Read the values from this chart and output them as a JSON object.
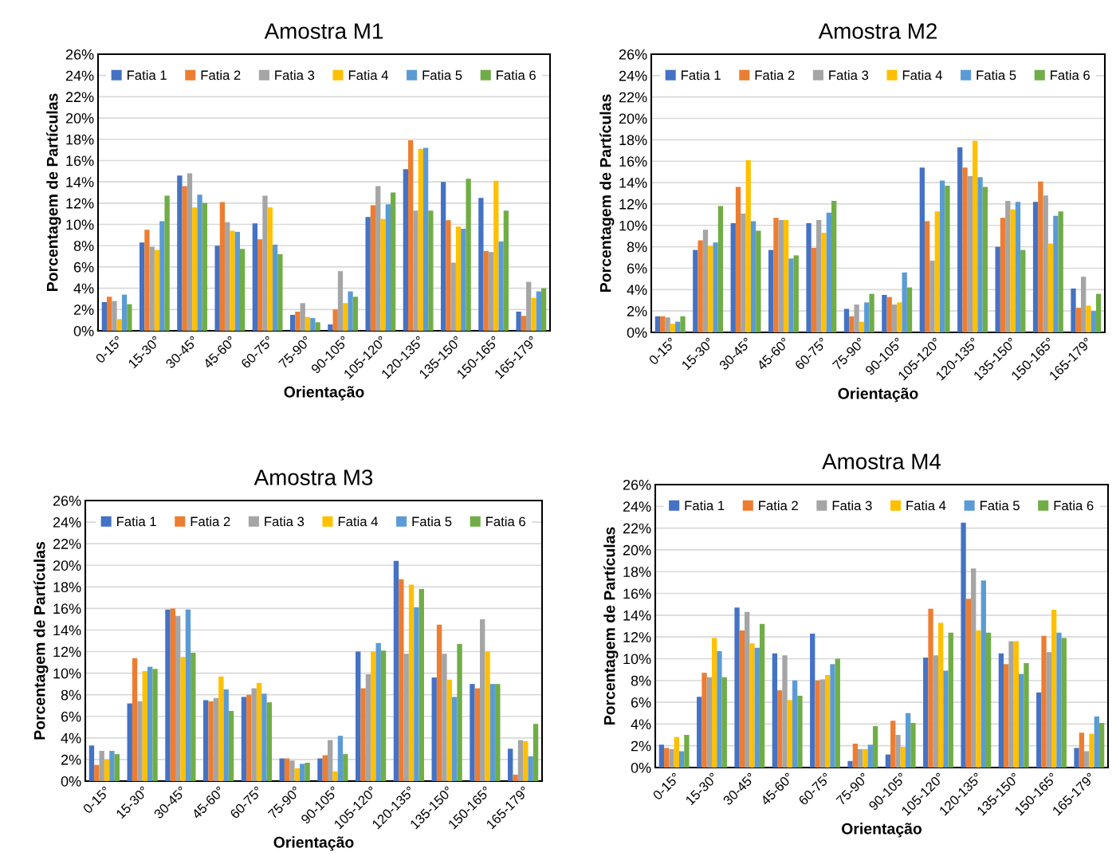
{
  "chart_data": [
    {
      "type": "bar",
      "title": "Amostra M1",
      "xlabel": "Orientação",
      "ylabel": "Porcentagem de Partículas",
      "categories": [
        "0-15°",
        "15-30°",
        "30-45°",
        "45-60°",
        "60-75°",
        "75-90°",
        "90-105°",
        "105-120°",
        "120-135°",
        "135-150°",
        "150-165°",
        "165-179°"
      ],
      "ylim": [
        0,
        26
      ],
      "yticks": [
        {
          "value": 0,
          "label": "0%"
        },
        {
          "value": 2,
          "label": "2%"
        },
        {
          "value": 4,
          "label": "4%"
        },
        {
          "value": 6,
          "label": "6%"
        },
        {
          "value": 8,
          "label": "8%"
        },
        {
          "value": 10,
          "label": "10%"
        },
        {
          "value": 12,
          "label": "12%"
        },
        {
          "value": 14,
          "label": "14%"
        },
        {
          "value": 16,
          "label": "16%"
        },
        {
          "value": 18,
          "label": "18%"
        },
        {
          "value": 20,
          "label": "20%"
        },
        {
          "value": 22,
          "label": "22%"
        },
        {
          "value": 24,
          "label": "24%"
        },
        {
          "value": 26,
          "label": "26%"
        }
      ],
      "grid": "y",
      "legend": "top",
      "series": [
        {
          "name": "Fatia 1",
          "color": "#4472c4",
          "values": [
            2.7,
            8.3,
            14.6,
            8.0,
            10.1,
            1.5,
            0.6,
            10.7,
            15.2,
            14.0,
            12.5,
            1.8
          ]
        },
        {
          "name": "Fatia 2",
          "color": "#ed7d31",
          "values": [
            3.2,
            9.5,
            13.6,
            12.1,
            8.6,
            1.8,
            2.0,
            11.8,
            17.9,
            10.4,
            7.5,
            1.4
          ]
        },
        {
          "name": "Fatia 3",
          "color": "#a5a5a5",
          "values": [
            2.8,
            7.9,
            14.8,
            10.2,
            12.7,
            2.6,
            5.6,
            13.6,
            11.3,
            6.4,
            7.4,
            4.6
          ]
        },
        {
          "name": "Fatia 4",
          "color": "#ffc000",
          "values": [
            1.1,
            7.6,
            11.6,
            9.4,
            11.6,
            1.3,
            2.6,
            10.5,
            17.1,
            9.8,
            14.1,
            3.1
          ]
        },
        {
          "name": "Fatia 5",
          "color": "#5b9bd5",
          "values": [
            3.4,
            10.3,
            12.8,
            9.3,
            8.1,
            1.2,
            3.7,
            11.9,
            17.2,
            9.6,
            8.4,
            3.7
          ]
        },
        {
          "name": "Fatia 6",
          "color": "#70ad47",
          "values": [
            2.5,
            12.7,
            12.0,
            7.7,
            7.2,
            0.8,
            3.2,
            13.0,
            11.3,
            14.3,
            11.3,
            4.0
          ]
        }
      ]
    },
    {
      "type": "bar",
      "title": "Amostra M2",
      "xlabel": "Orientação",
      "ylabel": "Porcentagem de Partículas",
      "categories": [
        "0-15°",
        "15-30°",
        "30-45°",
        "45-60°",
        "60-75°",
        "75-90°",
        "90-105°",
        "105-120°",
        "120-135°",
        "135-150°",
        "150-165°",
        "165-179°"
      ],
      "ylim": [
        0,
        26
      ],
      "yticks": [
        {
          "value": 0,
          "label": "0%"
        },
        {
          "value": 2,
          "label": "2%"
        },
        {
          "value": 4,
          "label": "4%"
        },
        {
          "value": 6,
          "label": "6%"
        },
        {
          "value": 8,
          "label": "8%"
        },
        {
          "value": 10,
          "label": "10%"
        },
        {
          "value": 12,
          "label": "12%"
        },
        {
          "value": 14,
          "label": "14%"
        },
        {
          "value": 16,
          "label": "16%"
        },
        {
          "value": 18,
          "label": "18%"
        },
        {
          "value": 20,
          "label": "20%"
        },
        {
          "value": 22,
          "label": "22%"
        },
        {
          "value": 24,
          "label": "24%"
        },
        {
          "value": 26,
          "label": "26%"
        }
      ],
      "grid": "y",
      "legend": "top",
      "series": [
        {
          "name": "Fatia 1",
          "color": "#4472c4",
          "values": [
            1.5,
            7.7,
            10.2,
            7.7,
            10.2,
            2.2,
            3.5,
            15.4,
            17.3,
            8.0,
            12.2,
            4.1
          ]
        },
        {
          "name": "Fatia 2",
          "color": "#ed7d31",
          "values": [
            1.5,
            8.6,
            13.6,
            10.7,
            7.9,
            1.5,
            3.3,
            10.4,
            15.4,
            10.7,
            14.1,
            2.3
          ]
        },
        {
          "name": "Fatia 3",
          "color": "#a5a5a5",
          "values": [
            1.4,
            9.6,
            11.1,
            10.5,
            10.5,
            2.6,
            2.6,
            6.7,
            14.6,
            12.3,
            12.8,
            5.2
          ]
        },
        {
          "name": "Fatia 4",
          "color": "#ffc000",
          "values": [
            0.8,
            8.1,
            16.1,
            10.5,
            9.3,
            1.0,
            2.8,
            11.3,
            17.9,
            11.5,
            8.3,
            2.5
          ]
        },
        {
          "name": "Fatia 5",
          "color": "#5b9bd5",
          "values": [
            1.0,
            8.4,
            10.4,
            6.9,
            11.2,
            2.8,
            5.6,
            14.2,
            14.5,
            12.2,
            10.9,
            2.0
          ]
        },
        {
          "name": "Fatia 6",
          "color": "#70ad47",
          "values": [
            1.5,
            11.8,
            9.5,
            7.2,
            12.3,
            3.6,
            4.2,
            13.7,
            13.6,
            7.7,
            11.3,
            3.6
          ]
        }
      ]
    },
    {
      "type": "bar",
      "title": "Amostra M3",
      "xlabel": "Orientação",
      "ylabel": "Porcentagem de Partículas",
      "categories": [
        "0-15°",
        "15-30°",
        "30-45°",
        "45-60°",
        "60-75°",
        "75-90°",
        "90-105°",
        "105-120°",
        "120-135°",
        "135-150°",
        "150-165°",
        "165-179°"
      ],
      "ylim": [
        0,
        26
      ],
      "yticks": [
        {
          "value": 0,
          "label": "0%"
        },
        {
          "value": 2,
          "label": "2%"
        },
        {
          "value": 4,
          "label": "4%"
        },
        {
          "value": 6,
          "label": "6%"
        },
        {
          "value": 8,
          "label": "8%"
        },
        {
          "value": 10,
          "label": "10%"
        },
        {
          "value": 12,
          "label": "12%"
        },
        {
          "value": 14,
          "label": "14%"
        },
        {
          "value": 16,
          "label": "16%"
        },
        {
          "value": 18,
          "label": "18%"
        },
        {
          "value": 20,
          "label": "20%"
        },
        {
          "value": 22,
          "label": "22%"
        },
        {
          "value": 24,
          "label": "24%"
        },
        {
          "value": 26,
          "label": "26%"
        }
      ],
      "grid": "y",
      "legend": "top",
      "series": [
        {
          "name": "Fatia 1",
          "color": "#4472c4",
          "values": [
            3.3,
            7.2,
            15.9,
            7.5,
            7.8,
            2.1,
            2.1,
            12.0,
            20.4,
            9.6,
            9.0,
            3.0
          ]
        },
        {
          "name": "Fatia 2",
          "color": "#ed7d31",
          "values": [
            1.5,
            11.4,
            16.0,
            7.4,
            8.0,
            2.1,
            2.4,
            8.6,
            18.7,
            14.5,
            8.6,
            0.6
          ]
        },
        {
          "name": "Fatia 3",
          "color": "#a5a5a5",
          "values": [
            2.8,
            7.4,
            15.3,
            7.7,
            8.6,
            1.9,
            3.8,
            9.9,
            11.8,
            11.8,
            15.0,
            3.8
          ]
        },
        {
          "name": "Fatia 4",
          "color": "#ffc000",
          "values": [
            2.0,
            10.2,
            11.5,
            9.7,
            9.1,
            1.2,
            0.9,
            12.0,
            18.2,
            9.4,
            12.0,
            3.7
          ]
        },
        {
          "name": "Fatia 5",
          "color": "#5b9bd5",
          "values": [
            2.8,
            10.6,
            15.9,
            8.5,
            8.1,
            1.6,
            4.2,
            12.8,
            16.1,
            7.8,
            9.0,
            2.3
          ]
        },
        {
          "name": "Fatia 6",
          "color": "#70ad47",
          "values": [
            2.5,
            10.4,
            11.9,
            6.5,
            7.3,
            1.7,
            2.5,
            12.1,
            17.8,
            12.7,
            9.0,
            5.3
          ]
        }
      ]
    },
    {
      "type": "bar",
      "title": "Amostra M4",
      "xlabel": "Orientação",
      "ylabel": "Porcentagem de Partículas",
      "categories": [
        "0-15°",
        "15-30°",
        "30-45°",
        "45-60°",
        "60-75°",
        "75-90°",
        "90-105°",
        "105-120°",
        "120-135°",
        "135-150°",
        "150-165°",
        "165-179°"
      ],
      "ylim": [
        0,
        26
      ],
      "yticks": [
        {
          "value": 0,
          "label": "0%"
        },
        {
          "value": 2,
          "label": "2%"
        },
        {
          "value": 4,
          "label": "4%"
        },
        {
          "value": 6,
          "label": "6%"
        },
        {
          "value": 8,
          "label": "8%"
        },
        {
          "value": 10,
          "label": "10%"
        },
        {
          "value": 12,
          "label": "12%"
        },
        {
          "value": 14,
          "label": "14%"
        },
        {
          "value": 16,
          "label": "16%"
        },
        {
          "value": 18,
          "label": "18%"
        },
        {
          "value": 20,
          "label": "20%"
        },
        {
          "value": 22,
          "label": "22%"
        },
        {
          "value": 24,
          "label": "24%"
        },
        {
          "value": 26,
          "label": "26%"
        }
      ],
      "grid": "y",
      "legend": "top",
      "series": [
        {
          "name": "Fatia 1",
          "color": "#4472c4",
          "values": [
            2.1,
            6.5,
            14.7,
            10.5,
            12.3,
            0.6,
            1.2,
            10.1,
            22.5,
            10.5,
            6.9,
            1.8
          ]
        },
        {
          "name": "Fatia 2",
          "color": "#ed7d31",
          "values": [
            1.8,
            8.7,
            12.6,
            7.1,
            8.0,
            2.2,
            4.3,
            14.6,
            15.5,
            9.5,
            12.1,
            3.2
          ]
        },
        {
          "name": "Fatia 3",
          "color": "#a5a5a5",
          "values": [
            1.7,
            8.3,
            14.3,
            10.3,
            8.1,
            1.7,
            3.0,
            10.3,
            18.3,
            11.6,
            10.6,
            1.5
          ]
        },
        {
          "name": "Fatia 4",
          "color": "#ffc000",
          "values": [
            2.8,
            11.9,
            11.4,
            6.2,
            8.5,
            1.7,
            1.9,
            13.3,
            12.6,
            11.6,
            14.5,
            3.1
          ]
        },
        {
          "name": "Fatia 5",
          "color": "#5b9bd5",
          "values": [
            1.5,
            10.7,
            11.0,
            8.0,
            9.5,
            2.1,
            5.0,
            8.9,
            17.2,
            8.6,
            12.4,
            4.7
          ]
        },
        {
          "name": "Fatia 6",
          "color": "#70ad47",
          "values": [
            3.0,
            8.3,
            13.2,
            6.6,
            10.0,
            3.8,
            4.1,
            12.4,
            12.4,
            9.6,
            11.9,
            4.1
          ]
        }
      ]
    }
  ]
}
